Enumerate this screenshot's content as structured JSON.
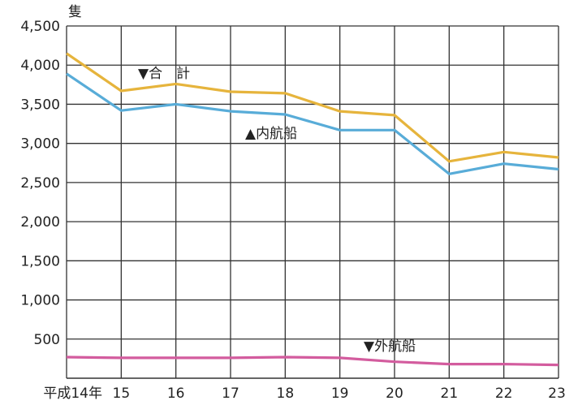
{
  "chart_data": {
    "type": "line",
    "y_unit": "隻",
    "categories": [
      "平成14年",
      "15",
      "16",
      "17",
      "18",
      "19",
      "20",
      "21",
      "22",
      "23"
    ],
    "ylim": [
      0,
      4500
    ],
    "yticks": [
      500,
      1000,
      1500,
      2000,
      2500,
      3000,
      3500,
      4000,
      4500
    ],
    "ytick_labels": [
      "500",
      "1,000",
      "1,500",
      "2,000",
      "2,500",
      "3,000",
      "3,500",
      "4,000",
      "4,500"
    ],
    "grid": true,
    "series": [
      {
        "name": "合　計",
        "label": "▼合　計",
        "color": "#e6b43c",
        "values": [
          4150,
          3670,
          3760,
          3660,
          3640,
          3410,
          3360,
          2770,
          2890,
          2820
        ]
      },
      {
        "name": "内航船",
        "label": "▲内航船",
        "color": "#58acd8",
        "values": [
          3890,
          3420,
          3500,
          3410,
          3370,
          3170,
          3170,
          2610,
          2740,
          2670
        ]
      },
      {
        "name": "外航船",
        "label": "▼外航船",
        "color": "#d35c9e",
        "values": [
          270,
          260,
          260,
          260,
          270,
          260,
          210,
          180,
          180,
          170
        ]
      }
    ]
  }
}
